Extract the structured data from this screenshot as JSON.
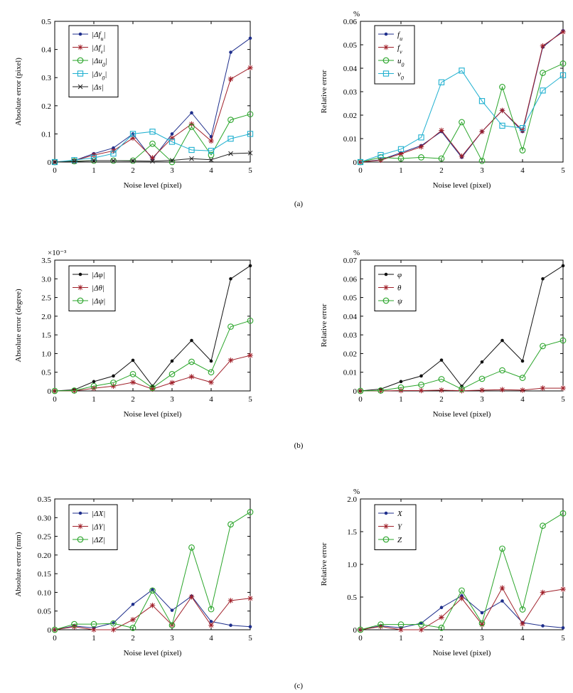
{
  "panels": [
    {
      "label": "(a)"
    },
    {
      "label": "(b)"
    },
    {
      "label": "(c)"
    }
  ],
  "chart_data": [
    {
      "type": "line",
      "panel": "(a)",
      "title": "",
      "xlabel": "Noise level (pixel)",
      "ylabel": "Absolute error (pixel)",
      "unit_note": "",
      "x": [
        0,
        0.5,
        1,
        1.5,
        2,
        2.5,
        3,
        3.5,
        4,
        4.5,
        5
      ],
      "xticks": [
        "0",
        "1",
        "2",
        "3",
        "4",
        "5"
      ],
      "xlim": [
        0,
        5
      ],
      "ylim": [
        0,
        0.5
      ],
      "yticks": [
        "0",
        "0.1",
        "0.2",
        "0.3",
        "0.4",
        "0.5"
      ],
      "legend_position": "top-left",
      "series": [
        {
          "name": "|Δf_u|",
          "color": "#1f2f8c",
          "marker": "dot",
          "values": [
            0,
            0.005,
            0.03,
            0.05,
            0.1,
            0.01,
            0.1,
            0.175,
            0.09,
            0.39,
            0.44
          ]
        },
        {
          "name": "|Δf_v|",
          "color": "#a0202a",
          "marker": "star",
          "values": [
            0,
            0.005,
            0.025,
            0.04,
            0.085,
            0.015,
            0.085,
            0.135,
            0.075,
            0.295,
            0.335
          ]
        },
        {
          "name": "|Δu_0|",
          "color": "#2aa52a",
          "marker": "circle",
          "values": [
            0,
            0.003,
            0.005,
            0.005,
            0.005,
            0.065,
            0.0,
            0.125,
            0.025,
            0.15,
            0.17
          ]
        },
        {
          "name": "|Δv_0|",
          "color": "#1fb0d0",
          "marker": "square",
          "values": [
            0,
            0.007,
            0.015,
            0.03,
            0.1,
            0.108,
            0.072,
            0.043,
            0.04,
            0.083,
            0.1
          ]
        },
        {
          "name": "|Δs|",
          "color": "#222222",
          "marker": "x",
          "values": [
            0,
            0.002,
            0.005,
            0.005,
            0.004,
            0.003,
            0.006,
            0.012,
            0.008,
            0.03,
            0.032
          ]
        }
      ]
    },
    {
      "type": "line",
      "panel": "(a)",
      "title": "",
      "xlabel": "Noise level (pixel)",
      "ylabel": "Relative error",
      "unit_note": "%",
      "x": [
        0,
        0.5,
        1,
        1.5,
        2,
        2.5,
        3,
        3.5,
        4,
        4.5,
        5
      ],
      "xticks": [
        "0",
        "1",
        "2",
        "3",
        "4",
        "5"
      ],
      "xlim": [
        0,
        5
      ],
      "ylim": [
        0,
        0.06
      ],
      "yticks": [
        "0",
        "0.01",
        "0.02",
        "0.03",
        "0.04",
        "0.05",
        "0.06"
      ],
      "legend_position": "top-left",
      "series": [
        {
          "name": "f_u",
          "color": "#1f2f8c",
          "marker": "dot",
          "values": [
            0,
            0.001,
            0.004,
            0.007,
            0.013,
            0.002,
            0.013,
            0.022,
            0.013,
            0.049,
            0.056
          ]
        },
        {
          "name": "f_v",
          "color": "#a0202a",
          "marker": "star",
          "values": [
            0,
            0.0008,
            0.0035,
            0.0065,
            0.0135,
            0.0025,
            0.013,
            0.022,
            0.0135,
            0.0495,
            0.0555
          ]
        },
        {
          "name": "u_0",
          "color": "#2aa52a",
          "marker": "circle",
          "values": [
            0,
            0.002,
            0.0015,
            0.002,
            0.0015,
            0.017,
            0.0005,
            0.032,
            0.005,
            0.038,
            0.042
          ]
        },
        {
          "name": "v_0",
          "color": "#1fb0d0",
          "marker": "square",
          "values": [
            0,
            0.003,
            0.0055,
            0.0105,
            0.034,
            0.039,
            0.026,
            0.0155,
            0.0145,
            0.0305,
            0.037
          ]
        }
      ]
    },
    {
      "type": "line",
      "panel": "(b)",
      "title": "",
      "xlabel": "Noise level (pixel)",
      "ylabel": "Absolute error (degree)",
      "unit_note": "×10⁻³",
      "x": [
        0,
        0.5,
        1,
        1.5,
        2,
        2.5,
        3,
        3.5,
        4,
        4.5,
        5
      ],
      "xticks": [
        "0",
        "1",
        "2",
        "3",
        "4",
        "5"
      ],
      "xlim": [
        0,
        5
      ],
      "ylim": [
        0,
        3.5
      ],
      "yticks": [
        "0",
        "0.5",
        "1.0",
        "1.5",
        "2.0",
        "2.5",
        "3.0",
        "3.5"
      ],
      "legend_position": "top-left",
      "series": [
        {
          "name": "|Δφ|",
          "color": "#111111",
          "marker": "dot",
          "values": [
            0,
            0.03,
            0.25,
            0.4,
            0.82,
            0.13,
            0.8,
            1.35,
            0.8,
            3.0,
            3.35
          ]
        },
        {
          "name": "|Δθ|",
          "color": "#a0202a",
          "marker": "star",
          "values": [
            0,
            0.0,
            0.07,
            0.13,
            0.23,
            0.05,
            0.22,
            0.38,
            0.23,
            0.82,
            0.95
          ]
        },
        {
          "name": "|Δψ|",
          "color": "#2aa52a",
          "marker": "circle",
          "values": [
            0,
            0.01,
            0.13,
            0.22,
            0.45,
            0.08,
            0.45,
            0.78,
            0.5,
            1.72,
            1.88
          ]
        }
      ]
    },
    {
      "type": "line",
      "panel": "(b)",
      "title": "",
      "xlabel": "Noise level (pixel)",
      "ylabel": "Relative error",
      "unit_note": "%",
      "x": [
        0,
        0.5,
        1,
        1.5,
        2,
        2.5,
        3,
        3.5,
        4,
        4.5,
        5
      ],
      "xticks": [
        "0",
        "1",
        "2",
        "3",
        "4",
        "5"
      ],
      "xlim": [
        0,
        5
      ],
      "ylim": [
        0,
        0.07
      ],
      "yticks": [
        "0",
        "0.01",
        "0.02",
        "0.03",
        "0.04",
        "0.05",
        "0.06",
        "0.07"
      ],
      "legend_position": "top-left",
      "series": [
        {
          "name": "φ",
          "color": "#111111",
          "marker": "dot",
          "values": [
            0,
            0.001,
            0.005,
            0.008,
            0.0165,
            0.0025,
            0.0155,
            0.027,
            0.016,
            0.06,
            0.067
          ]
        },
        {
          "name": "θ",
          "color": "#a0202a",
          "marker": "star",
          "values": [
            0,
            0.0,
            0.0002,
            0.0002,
            0.0004,
            0.0001,
            0.0004,
            0.0007,
            0.0004,
            0.0015,
            0.0015
          ]
        },
        {
          "name": "ψ",
          "color": "#2aa52a",
          "marker": "circle",
          "values": [
            0,
            0.0002,
            0.0018,
            0.0033,
            0.0063,
            0.001,
            0.0065,
            0.011,
            0.007,
            0.024,
            0.027
          ]
        }
      ]
    },
    {
      "type": "line",
      "panel": "(c)",
      "title": "",
      "xlabel": "Noise level (pixel)",
      "ylabel": "Absolute error (mm)",
      "unit_note": "",
      "x": [
        0,
        0.5,
        1,
        1.5,
        2,
        2.5,
        3,
        3.5,
        4,
        4.5,
        5
      ],
      "xticks": [
        "0",
        "1",
        "2",
        "3",
        "4",
        "5"
      ],
      "xlim": [
        0,
        5
      ],
      "ylim": [
        0,
        0.35
      ],
      "yticks": [
        "0",
        "0.05",
        "0.10",
        "0.15",
        "0.20",
        "0.25",
        "0.30",
        "0.35"
      ],
      "legend_position": "top-left",
      "series": [
        {
          "name": "|ΔX|",
          "color": "#1f2f8c",
          "marker": "dot",
          "values": [
            0,
            0.01,
            0.005,
            0.018,
            0.068,
            0.107,
            0.052,
            0.09,
            0.022,
            0.012,
            0.008
          ]
        },
        {
          "name": "|ΔY|",
          "color": "#a0202a",
          "marker": "star",
          "values": [
            0,
            0.008,
            0.0,
            0.0,
            0.027,
            0.065,
            0.013,
            0.088,
            0.012,
            0.078,
            0.084
          ]
        },
        {
          "name": "|ΔZ|",
          "color": "#2aa52a",
          "marker": "circle",
          "values": [
            0,
            0.015,
            0.015,
            0.017,
            0.005,
            0.105,
            0.012,
            0.22,
            0.055,
            0.282,
            0.315
          ]
        }
      ]
    },
    {
      "type": "line",
      "panel": "(c)",
      "title": "",
      "xlabel": "Noise level (pixel)",
      "ylabel": "Relative error",
      "unit_note": "%",
      "x": [
        0,
        0.5,
        1,
        1.5,
        2,
        2.5,
        3,
        3.5,
        4,
        4.5,
        5
      ],
      "xticks": [
        "0",
        "1",
        "2",
        "3",
        "4",
        "5"
      ],
      "xlim": [
        0,
        5
      ],
      "ylim": [
        0,
        2.0
      ],
      "yticks": [
        "0",
        "0.5",
        "1.0",
        "1.5",
        "2.0"
      ],
      "legend_position": "top-left",
      "series": [
        {
          "name": "X",
          "color": "#1f2f8c",
          "marker": "dot",
          "values": [
            0,
            0.06,
            0.03,
            0.1,
            0.34,
            0.52,
            0.26,
            0.44,
            0.11,
            0.06,
            0.03
          ]
        },
        {
          "name": "Y",
          "color": "#a0202a",
          "marker": "star",
          "values": [
            0,
            0.05,
            0.0,
            0.0,
            0.19,
            0.48,
            0.08,
            0.64,
            0.09,
            0.57,
            0.62
          ]
        },
        {
          "name": "Z",
          "color": "#2aa52a",
          "marker": "circle",
          "values": [
            0,
            0.08,
            0.08,
            0.08,
            0.03,
            0.6,
            0.1,
            1.24,
            0.31,
            1.59,
            1.78
          ]
        }
      ]
    }
  ]
}
